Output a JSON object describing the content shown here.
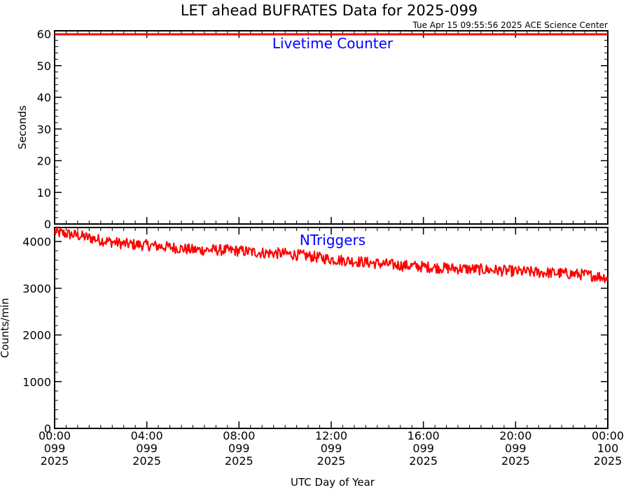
{
  "title": "LET ahead BUFRATES Data for 2025-099",
  "timestamp": "Tue Apr 15 09:55:56 2025 ACE Science Center",
  "x_axis_label": "UTC Day of Year",
  "colors": {
    "data_line": "#ff0000",
    "panel_title": "#0000ff",
    "axes": "#000000"
  },
  "x_ticks": [
    {
      "time": "00:00",
      "doy": "099",
      "year": "2025",
      "hours": 0
    },
    {
      "time": "04:00",
      "doy": "099",
      "year": "2025",
      "hours": 4
    },
    {
      "time": "08:00",
      "doy": "099",
      "year": "2025",
      "hours": 8
    },
    {
      "time": "12:00",
      "doy": "099",
      "year": "2025",
      "hours": 12
    },
    {
      "time": "16:00",
      "doy": "099",
      "year": "2025",
      "hours": 16
    },
    {
      "time": "20:00",
      "doy": "099",
      "year": "2025",
      "hours": 20
    },
    {
      "time": "00:00",
      "doy": "100",
      "year": "2025",
      "hours": 24
    }
  ],
  "chart_data": [
    {
      "type": "line",
      "panel_title": "Livetime Counter",
      "ylabel": "Seconds",
      "xlim_hours": [
        0,
        24
      ],
      "ylim": [
        0,
        61
      ],
      "yticks": [
        0,
        10,
        20,
        30,
        40,
        50,
        60
      ],
      "series": [
        {
          "x_hours": [
            0,
            24
          ],
          "values": [
            59.9,
            59.9
          ]
        }
      ]
    },
    {
      "type": "line",
      "panel_title": "NTriggers",
      "ylabel": "Counts/min",
      "xlim_hours": [
        0,
        24
      ],
      "ylim": [
        0,
        4300
      ],
      "yticks": [
        0,
        1000,
        2000,
        3000,
        4000
      ],
      "series": [
        {
          "x_hours": [
            0,
            1,
            2,
            3,
            4,
            5,
            6,
            7,
            8,
            9,
            10,
            11,
            12,
            13,
            14,
            15,
            16,
            17,
            18,
            19,
            20,
            21,
            22,
            23,
            24
          ],
          "values": [
            4200,
            4130,
            4030,
            3950,
            3920,
            3880,
            3820,
            3820,
            3800,
            3760,
            3740,
            3690,
            3620,
            3580,
            3530,
            3490,
            3460,
            3430,
            3410,
            3390,
            3360,
            3340,
            3320,
            3290,
            3230
          ],
          "noise_amplitude": 120
        }
      ]
    }
  ]
}
